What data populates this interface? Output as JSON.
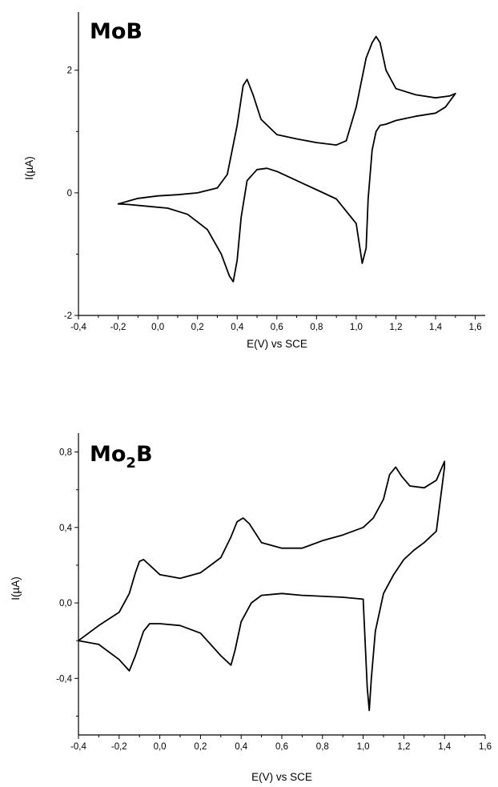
{
  "chart_data": [
    {
      "type": "line",
      "panel_label": {
        "main": "MoB",
        "sub": ""
      },
      "xlabel": "E(V) vs SCE",
      "ylabel": "I(µA)",
      "xlim": [
        -0.4,
        1.65
      ],
      "ylim": [
        -2.0,
        2.95
      ],
      "x_ticks": [
        -0.4,
        -0.2,
        0.0,
        0.2,
        0.4,
        0.6,
        0.8,
        1.0,
        1.2,
        1.4,
        1.6
      ],
      "x_tick_labels": [
        "-0,4",
        "-0,2",
        "0,0",
        "0,2",
        "0,4",
        "0,6",
        "0,8",
        "1,0",
        "1,2",
        "1,4",
        "1,6"
      ],
      "y_ticks": [
        -2,
        0,
        2
      ],
      "y_tick_labels": [
        "-2",
        "0",
        "2"
      ],
      "y_minor_ticks": [
        -1,
        1
      ],
      "series": [
        {
          "x": [
            -0.2,
            -0.1,
            0.0,
            0.1,
            0.2,
            0.3,
            0.35,
            0.4,
            0.43,
            0.45,
            0.48,
            0.52,
            0.6,
            0.7,
            0.8,
            0.9,
            0.95,
            1.0,
            1.05,
            1.08,
            1.1,
            1.12,
            1.15,
            1.2,
            1.3,
            1.4,
            1.47,
            1.5,
            1.45,
            1.4,
            1.3,
            1.2,
            1.15,
            1.12,
            1.1,
            1.08,
            1.06,
            1.05,
            1.03,
            1.0,
            0.9,
            0.8,
            0.7,
            0.6,
            0.55,
            0.5,
            0.45,
            0.42,
            0.4,
            0.38,
            0.36,
            0.32,
            0.25,
            0.15,
            0.05,
            -0.05,
            -0.15,
            -0.2
          ],
          "y": [
            -0.18,
            -0.09,
            -0.05,
            -0.03,
            0.0,
            0.08,
            0.3,
            1.1,
            1.75,
            1.85,
            1.6,
            1.2,
            0.95,
            0.88,
            0.82,
            0.78,
            0.85,
            1.4,
            2.2,
            2.45,
            2.55,
            2.45,
            2.0,
            1.7,
            1.6,
            1.55,
            1.58,
            1.62,
            1.4,
            1.3,
            1.25,
            1.18,
            1.12,
            1.1,
            1.0,
            0.7,
            -0.1,
            -0.9,
            -1.15,
            -0.5,
            -0.1,
            0.05,
            0.2,
            0.35,
            0.4,
            0.38,
            0.2,
            -0.4,
            -1.1,
            -1.45,
            -1.35,
            -1.0,
            -0.6,
            -0.35,
            -0.25,
            -0.22,
            -0.19,
            -0.18
          ]
        }
      ]
    },
    {
      "type": "line",
      "panel_label": {
        "main": "Mo",
        "sub": "2",
        "tail": "B"
      },
      "xlabel": "E(V) vs SCE",
      "ylabel": "I(µA)",
      "xlim": [
        -0.4,
        1.6
      ],
      "ylim": [
        -0.7,
        0.9
      ],
      "x_ticks": [
        -0.4,
        -0.2,
        0.0,
        0.2,
        0.4,
        0.6,
        0.8,
        1.0,
        1.2,
        1.4,
        1.6
      ],
      "x_tick_labels": [
        "-0,4",
        "-0,2",
        "0,0",
        "0,2",
        "0,4",
        "0,6",
        "0,8",
        "1,0",
        "1,2",
        "1,4",
        "1,6"
      ],
      "y_ticks": [
        -0.4,
        0.0,
        0.4,
        0.8
      ],
      "y_tick_labels": [
        "-0,4",
        "0,0",
        "0,4",
        "0,8"
      ],
      "y_minor_ticks": [
        -0.6,
        -0.2,
        0.2,
        0.6
      ],
      "series": [
        {
          "x": [
            -0.4,
            -0.3,
            -0.2,
            -0.15,
            -0.12,
            -0.1,
            -0.08,
            -0.05,
            0.0,
            0.1,
            0.2,
            0.3,
            0.35,
            0.38,
            0.41,
            0.44,
            0.5,
            0.6,
            0.7,
            0.8,
            0.9,
            1.0,
            1.05,
            1.1,
            1.13,
            1.16,
            1.19,
            1.23,
            1.3,
            1.36,
            1.4,
            1.4,
            1.36,
            1.3,
            1.25,
            1.2,
            1.15,
            1.1,
            1.06,
            1.04,
            1.03,
            1.02,
            1.0,
            0.9,
            0.7,
            0.6,
            0.5,
            0.45,
            0.4,
            0.37,
            0.35,
            0.3,
            0.2,
            0.1,
            0.0,
            -0.05,
            -0.08,
            -0.12,
            -0.15,
            -0.2,
            -0.3,
            -0.4
          ],
          "y": [
            -0.2,
            -0.12,
            -0.05,
            0.05,
            0.16,
            0.22,
            0.23,
            0.2,
            0.15,
            0.13,
            0.16,
            0.24,
            0.35,
            0.43,
            0.45,
            0.42,
            0.32,
            0.29,
            0.29,
            0.33,
            0.36,
            0.4,
            0.45,
            0.55,
            0.68,
            0.72,
            0.67,
            0.62,
            0.61,
            0.65,
            0.75,
            0.72,
            0.38,
            0.32,
            0.28,
            0.23,
            0.15,
            0.05,
            -0.15,
            -0.4,
            -0.57,
            -0.45,
            0.02,
            0.03,
            0.04,
            0.05,
            0.04,
            0.0,
            -0.1,
            -0.25,
            -0.33,
            -0.28,
            -0.16,
            -0.12,
            -0.11,
            -0.11,
            -0.15,
            -0.28,
            -0.36,
            -0.3,
            -0.22,
            -0.2
          ]
        }
      ]
    }
  ]
}
